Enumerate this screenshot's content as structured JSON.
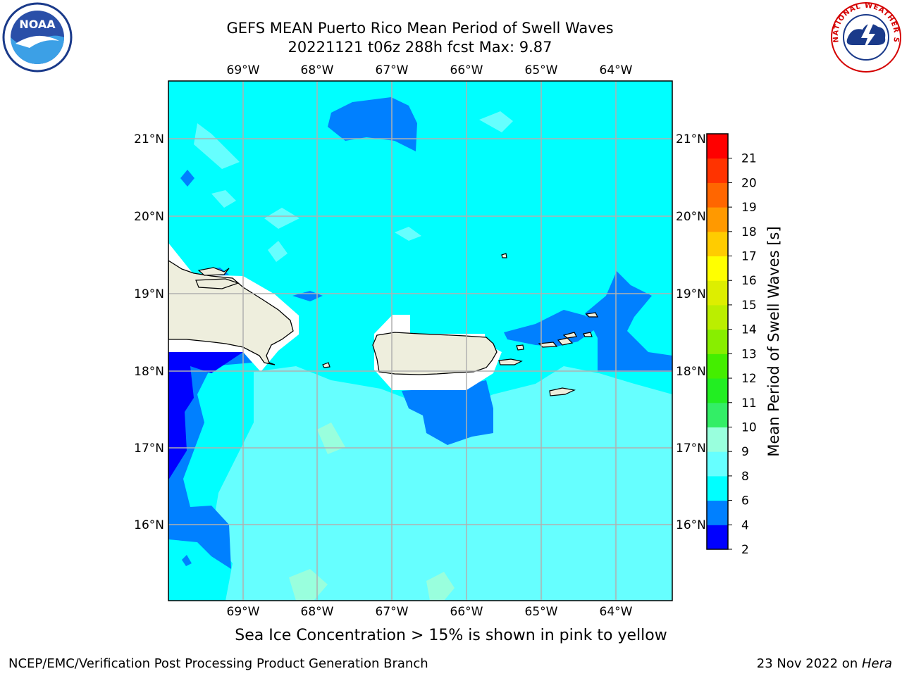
{
  "header": {
    "title_line1": "GEFS MEAN Puerto Rico Mean Period of Swell Waves",
    "title_line2": "20221121 t06z 288h fcst   Max: 9.87"
  },
  "map": {
    "lon_ticks": [
      "69°W",
      "68°W",
      "67°W",
      "66°W",
      "65°W",
      "64°W"
    ],
    "lat_ticks": [
      "21°N",
      "20°N",
      "19°N",
      "18°N",
      "17°N",
      "16°N"
    ],
    "colors": {
      "ocean_base": "#00ffff",
      "land": "#eeeedd",
      "grid": "#b0b0b0"
    }
  },
  "colorbar": {
    "label": "Mean Period of Swell Waves [s]",
    "levels": [
      "2",
      "4",
      "6",
      "8",
      "9",
      "10",
      "11",
      "12",
      "13",
      "14",
      "15",
      "16",
      "17",
      "18",
      "19",
      "20",
      "21"
    ],
    "colors": [
      "#0000ff",
      "#0080ff",
      "#00ffff",
      "#66ffff",
      "#99ffdd",
      "#33ee66",
      "#22ee22",
      "#44ee00",
      "#88ee00",
      "#bbee00",
      "#ddee00",
      "#ffff00",
      "#ffcc00",
      "#ff9900",
      "#ff6600",
      "#ff3300",
      "#ff0000"
    ]
  },
  "footer": {
    "caption": "Sea Ice Concentration > 15% is shown in pink to yellow",
    "credit_left": "NCEP/EMC/Verification Post Processing Product Generation Branch",
    "date_prefix": "23 Nov 2022 on ",
    "machine": "Hera"
  },
  "logos": {
    "noaa_text": "NOAA",
    "nws_text": "NATIONAL WEATHER SERVICE"
  }
}
